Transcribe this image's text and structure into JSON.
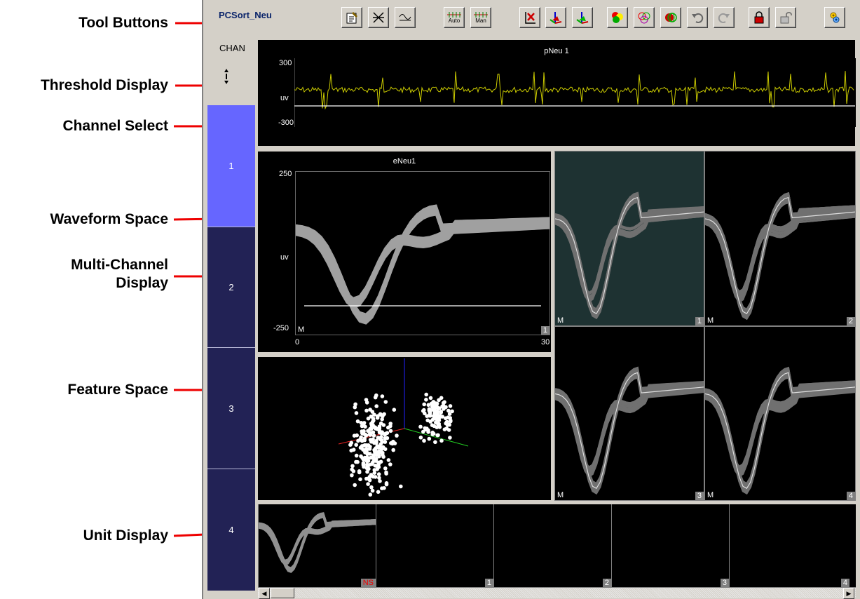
{
  "callouts": {
    "tool_buttons": "Tool Buttons",
    "threshold_display": "Threshold Display",
    "channel_select": "Channel Select",
    "waveform_space": "Waveform Space",
    "multi_channel_line1": "Multi-Channel",
    "multi_channel_line2": "Display",
    "feature_space": "Feature Space",
    "unit_display": "Unit Display"
  },
  "app": {
    "title": "PCSort_Neu",
    "toolbar": {
      "auto_label": "Auto",
      "man_label": "Man"
    },
    "channel": {
      "label": "CHAN",
      "tabs": [
        "1",
        "2",
        "3",
        "4"
      ],
      "selected_tab": "1",
      "selected_color": "#6666ff",
      "tab_color": "#222255"
    },
    "threshold": {
      "title": "pNeu 1",
      "ymax": "300",
      "unit": "uv",
      "ymin": "-300",
      "trace_color": "#cccc00"
    },
    "waveform": {
      "title": "eNeu1",
      "ymax": "250",
      "unit": "uv",
      "ymin": "-250",
      "xmin": "0",
      "xmax": "30",
      "mode": "M",
      "number": "1"
    },
    "multichannel": [
      {
        "mode": "M",
        "number": "1"
      },
      {
        "mode": "M",
        "number": "2"
      },
      {
        "mode": "M",
        "number": "3"
      },
      {
        "mode": "M",
        "number": "4"
      }
    ],
    "units": [
      {
        "label": "NS"
      },
      {
        "label": "1"
      },
      {
        "label": "2"
      },
      {
        "label": "3"
      },
      {
        "label": "4"
      }
    ]
  }
}
